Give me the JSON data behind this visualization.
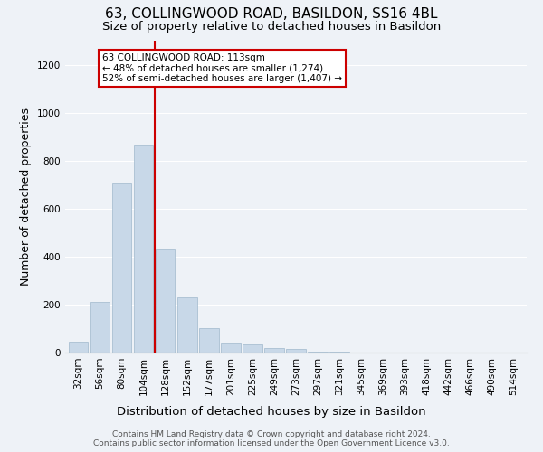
{
  "title": "63, COLLINGWOOD ROAD, BASILDON, SS16 4BL",
  "subtitle": "Size of property relative to detached houses in Basildon",
  "xlabel": "Distribution of detached houses by size in Basildon",
  "ylabel": "Number of detached properties",
  "categories": [
    "32sqm",
    "56sqm",
    "80sqm",
    "104sqm",
    "128sqm",
    "152sqm",
    "177sqm",
    "201sqm",
    "225sqm",
    "249sqm",
    "273sqm",
    "297sqm",
    "321sqm",
    "345sqm",
    "369sqm",
    "393sqm",
    "418sqm",
    "442sqm",
    "466sqm",
    "490sqm",
    "514sqm"
  ],
  "values": [
    47,
    210,
    710,
    865,
    435,
    230,
    100,
    43,
    33,
    20,
    14,
    5,
    2,
    1,
    0,
    0,
    0,
    0,
    0,
    0,
    0
  ],
  "bar_color": "#c8d8e8",
  "bar_edge_color": "#a0b8cc",
  "vline_color": "#cc0000",
  "annotation_text": "63 COLLINGWOOD ROAD: 113sqm\n← 48% of detached houses are smaller (1,274)\n52% of semi-detached houses are larger (1,407) →",
  "annotation_box_color": "#ffffff",
  "annotation_box_edge_color": "#cc0000",
  "ylim": [
    0,
    1300
  ],
  "yticks": [
    0,
    200,
    400,
    600,
    800,
    1000,
    1200
  ],
  "footer_line1": "Contains HM Land Registry data © Crown copyright and database right 2024.",
  "footer_line2": "Contains public sector information licensed under the Open Government Licence v3.0.",
  "bg_color": "#eef2f7",
  "plot_bg_color": "#eef2f7",
  "title_fontsize": 11,
  "subtitle_fontsize": 9.5,
  "ylabel_fontsize": 9,
  "xlabel_fontsize": 9.5,
  "tick_fontsize": 7.5,
  "annotation_fontsize": 7.5,
  "footer_fontsize": 6.5
}
